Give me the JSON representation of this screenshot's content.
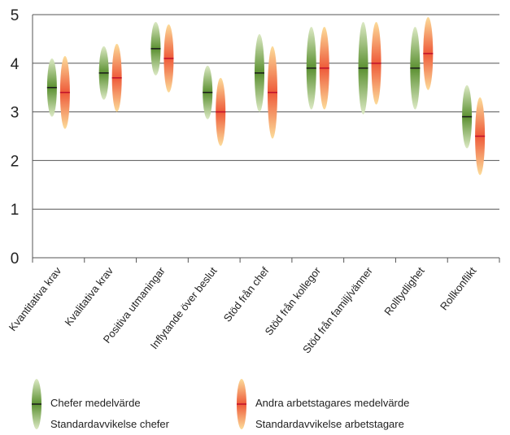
{
  "chart_data": {
    "type": "bar",
    "categories": [
      "Kvantitativa krav",
      "Kvalitativa krav",
      "Positiva utmaningar",
      "Inflytande över beslut",
      "Stöd från chef",
      "Stöd från kollegor",
      "Stöd från familj/vänner",
      "Rolltydlighet",
      "Rollkonflikt"
    ],
    "series": [
      {
        "name": "Chefer medelvärde",
        "sd_name": "Standardavvikelse chefer",
        "mean": [
          3.5,
          3.8,
          4.3,
          3.4,
          3.8,
          3.9,
          3.9,
          3.9,
          2.9
        ],
        "sd": [
          0.6,
          0.55,
          0.55,
          0.55,
          0.8,
          0.85,
          0.95,
          0.85,
          0.65
        ],
        "color_light": "#dce9c4",
        "color_dark": "#5c9132",
        "mean_color": "#1a1a1a"
      },
      {
        "name": "Andra arbetstagares medelvärde",
        "sd_name": "Standardavvikelse arbetstagare",
        "mean": [
          3.4,
          3.7,
          4.1,
          3.0,
          3.4,
          3.9,
          4.0,
          4.2,
          2.5
        ],
        "sd": [
          0.75,
          0.7,
          0.7,
          0.7,
          0.95,
          0.85,
          0.85,
          0.75,
          0.8
        ],
        "color_light": "#fcdc9a",
        "color_dark": "#ee5b3a",
        "mean_color": "#c0102a"
      }
    ],
    "ylim": [
      0,
      5
    ],
    "yticks": [
      "0",
      "1",
      "2",
      "3",
      "4",
      "5"
    ],
    "grid": true
  },
  "legend": {
    "chefer_mean": "Chefer medelvärde",
    "chefer_sd": "Standardavvikelse chefer",
    "andra_mean": "Andra arbetstagares medelvärde",
    "andra_sd": "Standardavvikelse arbetstagare"
  }
}
